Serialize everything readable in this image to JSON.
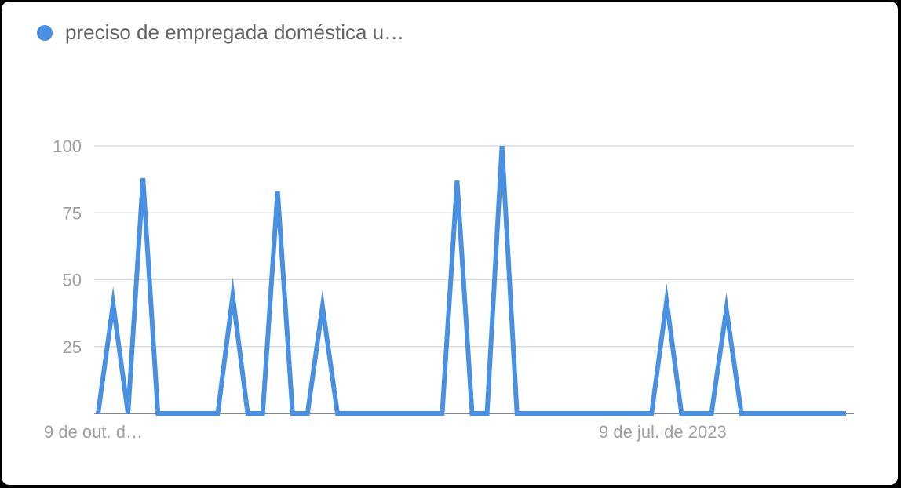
{
  "chart_data": {
    "type": "line",
    "title": "",
    "xlabel": "",
    "ylabel": "",
    "x_tick_labels": [
      "9 de out. d…",
      "9 de jul. de 2023"
    ],
    "y_ticks": [
      25,
      50,
      75,
      100
    ],
    "ylim": [
      0,
      100
    ],
    "grid": true,
    "legend_position": "top-left",
    "series": [
      {
        "name": "preciso de empregada doméstica u…",
        "color": "#4a90e2",
        "values": [
          0,
          41,
          0,
          88,
          0,
          0,
          0,
          0,
          0,
          44,
          0,
          0,
          83,
          0,
          0,
          40,
          0,
          0,
          0,
          0,
          0,
          0,
          0,
          0,
          87,
          0,
          0,
          100,
          0,
          0,
          0,
          0,
          0,
          0,
          0,
          0,
          0,
          0,
          42,
          0,
          0,
          0,
          39,
          0,
          0,
          0,
          0,
          0,
          0,
          0,
          0
        ]
      }
    ]
  }
}
